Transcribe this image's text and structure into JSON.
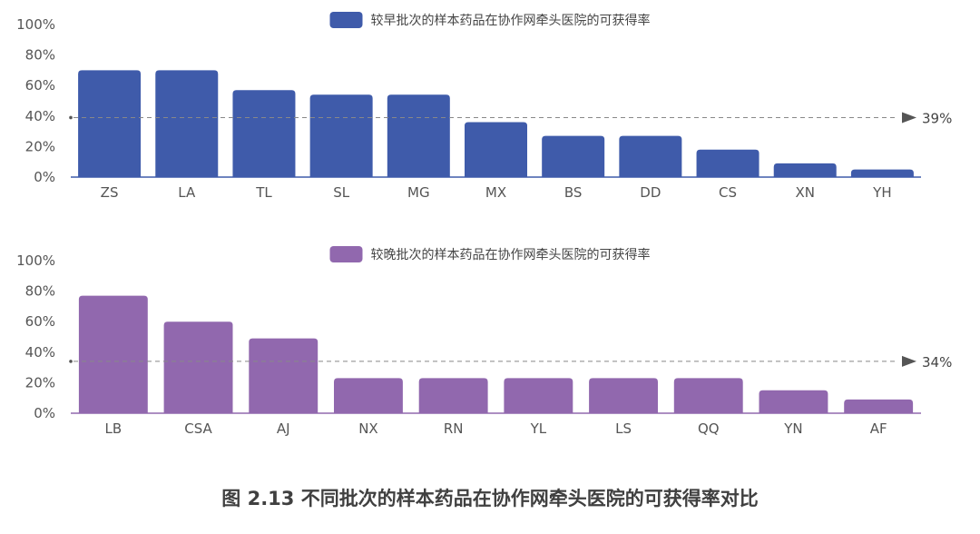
{
  "chart_data": [
    {
      "type": "bar",
      "legend": "较早批次的样本药品在协作网牵头医院的可获得率",
      "legend_position": "top-center",
      "color": "#3F5BAA",
      "categories": [
        "ZS",
        "LA",
        "TL",
        "SL",
        "MG",
        "MX",
        "BS",
        "DD",
        "CS",
        "XN",
        "YH"
      ],
      "values": [
        70,
        70,
        57,
        54,
        54,
        36,
        27,
        27,
        18,
        9,
        5
      ],
      "ylim": [
        0,
        100
      ],
      "yticks": [
        "0%",
        "20%",
        "40%",
        "60%",
        "80%",
        "100%"
      ],
      "reference": {
        "value": 39,
        "label": "39%"
      }
    },
    {
      "type": "bar",
      "legend": "较晚批次的样本药品在协作网牵头医院的可获得率",
      "legend_position": "top-center",
      "color": "#9168AE",
      "categories": [
        "LB",
        "CSA",
        "AJ",
        "NX",
        "RN",
        "YL",
        "LS",
        "QQ",
        "YN",
        "AF"
      ],
      "values": [
        77,
        60,
        49,
        23,
        23,
        23,
        23,
        23,
        15,
        9
      ],
      "ylim": [
        0,
        100
      ],
      "yticks": [
        "0%",
        "20%",
        "40%",
        "60%",
        "80%",
        "100%"
      ],
      "reference": {
        "value": 34,
        "label": "34%"
      }
    }
  ],
  "caption": "图 2.13 不同批次的样本药品在协作网牵头医院的可获得率对比"
}
